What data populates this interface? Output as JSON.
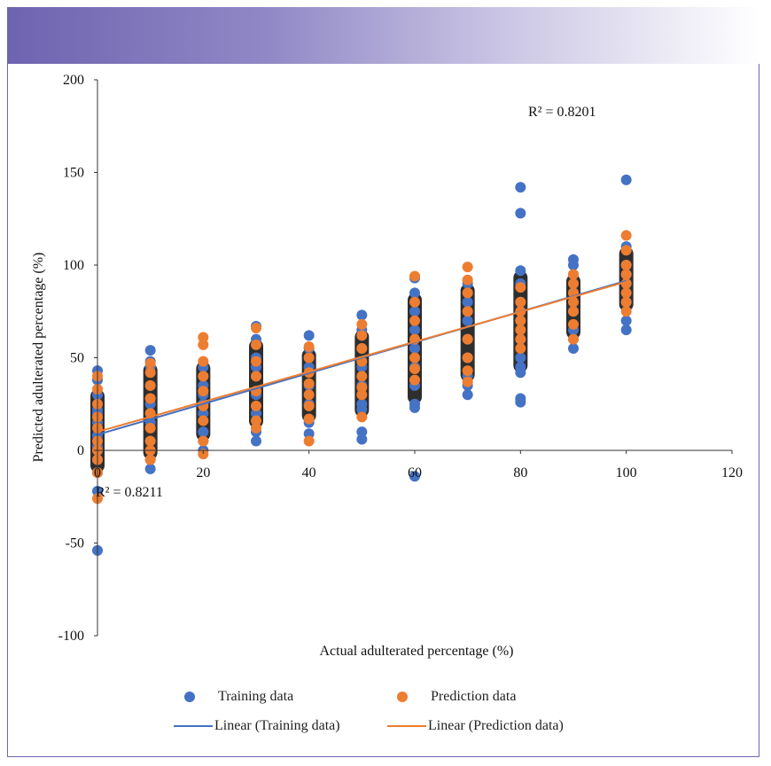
{
  "colors": {
    "training": "#4472c4",
    "prediction": "#ed7d31",
    "axis": "#333333",
    "frame": "#6f66b3"
  },
  "chart_data": {
    "type": "scatter",
    "title": "",
    "xlabel": "Actual adulterated percentage (%)",
    "ylabel": "Predicted adulterated percentage (%)",
    "xlim": [
      0,
      120
    ],
    "ylim": [
      -100,
      200
    ],
    "xticks": [
      "0",
      "20",
      "40",
      "60",
      "80",
      "100",
      "120"
    ],
    "yticks": [
      "-100",
      "-50",
      "0",
      "50",
      "100",
      "150",
      "200"
    ],
    "legend": [
      "Training data",
      "Prediction data",
      "Linear (Training data)",
      "Linear (Prediction data)"
    ],
    "annotations": [
      {
        "text": "R² = 0.8201",
        "series": "Prediction data"
      },
      {
        "text": "R² = 0.8211",
        "series": "Training data"
      }
    ],
    "series": [
      {
        "name": "Training data",
        "x": [
          0,
          0,
          0,
          0,
          0,
          0,
          0,
          0,
          0,
          0,
          0,
          0,
          10,
          10,
          10,
          10,
          10,
          10,
          10,
          10,
          10,
          10,
          20,
          20,
          20,
          20,
          20,
          20,
          20,
          20,
          20,
          30,
          30,
          30,
          30,
          30,
          30,
          30,
          30,
          30,
          40,
          40,
          40,
          40,
          40,
          40,
          40,
          40,
          50,
          50,
          50,
          50,
          50,
          50,
          50,
          50,
          50,
          60,
          60,
          60,
          60,
          60,
          60,
          60,
          60,
          60,
          60,
          70,
          70,
          70,
          70,
          70,
          70,
          70,
          70,
          80,
          80,
          80,
          80,
          80,
          80,
          80,
          80,
          80,
          80,
          80,
          80,
          90,
          90,
          90,
          90,
          90,
          90,
          90,
          90,
          100,
          100,
          100,
          100,
          100,
          100,
          100,
          100
        ],
        "y": [
          43,
          38,
          30,
          22,
          15,
          8,
          2,
          -5,
          -12,
          -22,
          -54,
          20,
          54,
          45,
          35,
          25,
          15,
          5,
          -5,
          -10,
          48,
          28,
          45,
          40,
          30,
          20,
          10,
          5,
          0,
          35,
          25,
          67,
          60,
          50,
          40,
          30,
          20,
          10,
          5,
          45,
          62,
          55,
          45,
          35,
          25,
          15,
          9,
          50,
          73,
          65,
          55,
          45,
          35,
          25,
          22,
          10,
          6,
          93,
          85,
          75,
          65,
          55,
          45,
          35,
          25,
          23,
          -14,
          90,
          80,
          70,
          60,
          50,
          40,
          35,
          30,
          142,
          128,
          97,
          90,
          80,
          70,
          60,
          50,
          45,
          42,
          28,
          26,
          103,
          95,
          85,
          75,
          65,
          60,
          55,
          100,
          146,
          110,
          100,
          90,
          80,
          70,
          65,
          95
        ]
      },
      {
        "name": "Prediction data",
        "x": [
          0,
          0,
          0,
          0,
          0,
          0,
          0,
          0,
          0,
          0,
          10,
          10,
          10,
          10,
          10,
          10,
          10,
          10,
          10,
          20,
          20,
          20,
          20,
          20,
          20,
          20,
          20,
          20,
          30,
          30,
          30,
          30,
          30,
          30,
          30,
          30,
          40,
          40,
          40,
          40,
          40,
          40,
          40,
          40,
          50,
          50,
          50,
          50,
          50,
          50,
          50,
          50,
          60,
          60,
          60,
          60,
          60,
          60,
          60,
          70,
          70,
          70,
          70,
          70,
          70,
          70,
          70,
          80,
          80,
          80,
          80,
          80,
          80,
          80,
          90,
          90,
          90,
          90,
          90,
          90,
          90,
          100,
          100,
          100,
          100,
          100,
          100,
          100,
          100
        ],
        "y": [
          40,
          33,
          25,
          18,
          12,
          5,
          0,
          -5,
          -12,
          -26,
          47,
          42,
          35,
          28,
          20,
          12,
          5,
          0,
          -5,
          61,
          57,
          48,
          40,
          32,
          24,
          16,
          5,
          -2,
          66,
          57,
          48,
          40,
          32,
          24,
          16,
          12,
          56,
          50,
          42,
          36,
          30,
          24,
          17,
          5,
          68,
          62,
          55,
          48,
          40,
          34,
          30,
          18,
          94,
          80,
          70,
          60,
          50,
          44,
          38,
          99,
          92,
          85,
          75,
          60,
          50,
          43,
          37,
          88,
          80,
          75,
          70,
          65,
          60,
          55,
          95,
          90,
          85,
          80,
          75,
          68,
          60,
          116,
          108,
          100,
          95,
          90,
          85,
          80,
          75
        ]
      },
      {
        "name": "Linear (Training data)",
        "type": "line",
        "x": [
          0,
          100
        ],
        "y": [
          8.5,
          91.5
        ]
      },
      {
        "name": "Linear (Prediction data)",
        "type": "line",
        "x": [
          0,
          100
        ],
        "y": [
          10,
          91
        ]
      }
    ]
  }
}
